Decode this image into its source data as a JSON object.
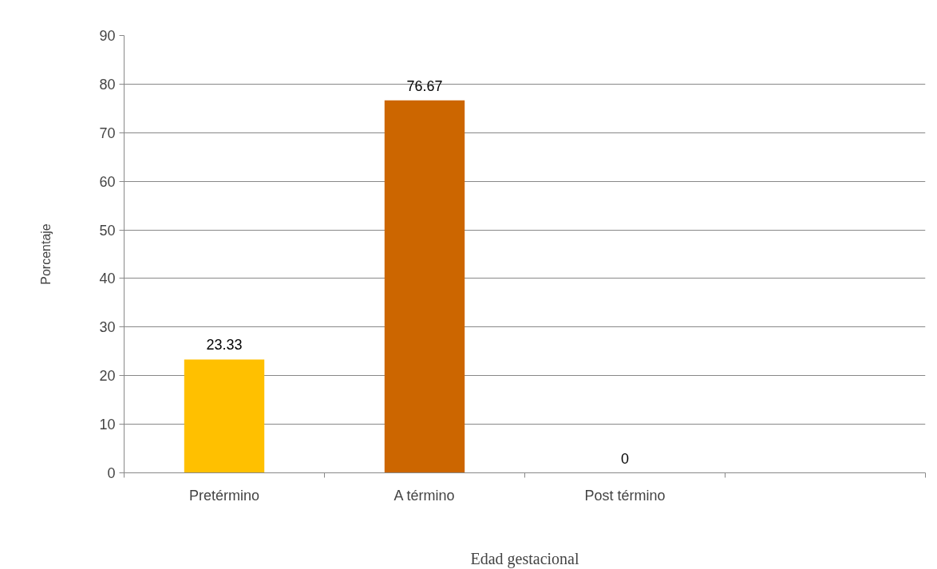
{
  "chart_data": {
    "type": "bar",
    "categories": [
      "Pretérmino",
      "A término",
      "Post término",
      null
    ],
    "values": [
      23.33,
      76.67,
      0,
      null
    ],
    "colors": [
      "#ffc000",
      "#cc6600",
      "#cc6600",
      "#cc6600"
    ],
    "xlabel": "Edad gestacional",
    "ylabel": "Porcentaje",
    "ylim": [
      0,
      90
    ],
    "yticks": [
      0,
      10,
      20,
      30,
      40,
      50,
      60,
      70,
      80,
      90
    ],
    "grid": "y",
    "data_labels": true
  }
}
